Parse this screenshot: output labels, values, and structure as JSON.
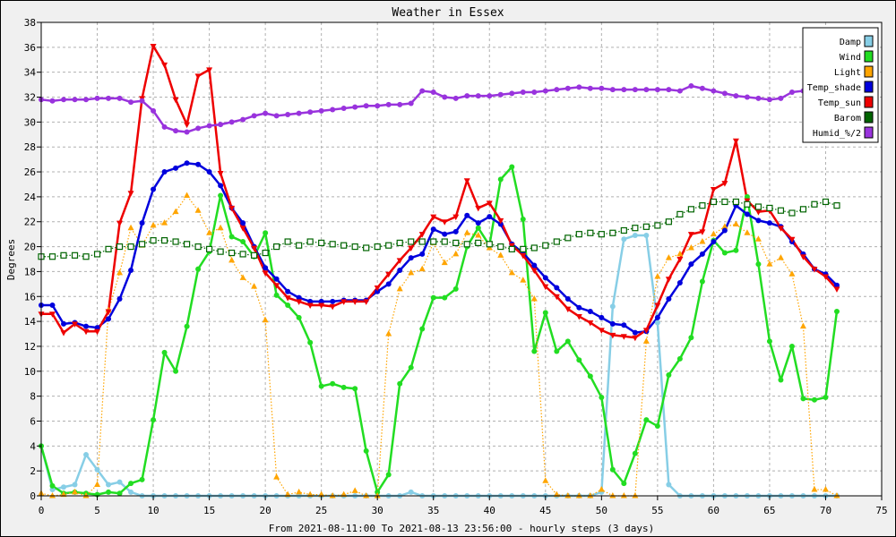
{
  "chart_data": {
    "type": "line",
    "title": "Weather in Essex",
    "xlabel": "From 2021-08-11:00 To 2021-08-13 23:56:00 - hourly steps (3 days)",
    "ylabel": "Degrees",
    "xlim": [
      0,
      75
    ],
    "ylim": [
      0,
      38
    ],
    "x_ticks": [
      0,
      5,
      10,
      15,
      20,
      25,
      30,
      35,
      40,
      45,
      50,
      55,
      60,
      65,
      70,
      75
    ],
    "y_ticks": [
      0,
      2,
      4,
      6,
      8,
      10,
      12,
      14,
      16,
      18,
      20,
      22,
      24,
      26,
      28,
      30,
      32,
      34,
      36,
      38
    ],
    "grid": true,
    "legend_position": "top-right",
    "x": [
      0,
      1,
      2,
      3,
      4,
      5,
      6,
      7,
      8,
      9,
      10,
      11,
      12,
      13,
      14,
      15,
      16,
      17,
      18,
      19,
      20,
      21,
      22,
      23,
      24,
      25,
      26,
      27,
      28,
      29,
      30,
      31,
      32,
      33,
      34,
      35,
      36,
      37,
      38,
      39,
      40,
      41,
      42,
      43,
      44,
      45,
      46,
      47,
      48,
      49,
      50,
      51,
      52,
      53,
      54,
      55,
      56,
      57,
      58,
      59,
      60,
      61,
      62,
      63,
      64,
      65,
      66,
      67,
      68,
      69,
      70,
      71
    ],
    "series": [
      {
        "name": "Damp",
        "color": "#87cee6",
        "style": "solid",
        "marker": "circle",
        "values": [
          4.0,
          0.5,
          0.7,
          0.9,
          3.3,
          2.1,
          0.9,
          1.1,
          0.3,
          0,
          0,
          0,
          0,
          0,
          0,
          0,
          0,
          0,
          0,
          0,
          0,
          0,
          0,
          0,
          0,
          0,
          0,
          0,
          0,
          0,
          0,
          0,
          0,
          0.3,
          0,
          0,
          0,
          0,
          0,
          0,
          0,
          0,
          0,
          0,
          0,
          0,
          0,
          0,
          0,
          0,
          0.3,
          15.2,
          20.6,
          20.9,
          20.9,
          13.9,
          0.9,
          0,
          0,
          0,
          0,
          0,
          0,
          0,
          0,
          0,
          0,
          0,
          0,
          0,
          0,
          0
        ]
      },
      {
        "name": "Wind",
        "color": "#22dd22",
        "style": "solid",
        "marker": "circle",
        "values": [
          4.0,
          0.8,
          0.2,
          0.3,
          0.2,
          0.1,
          0.3,
          0.2,
          1.0,
          1.3,
          6.1,
          11.5,
          10.0,
          13.6,
          18.2,
          19.6,
          24.1,
          20.8,
          20.4,
          19.2,
          21.1,
          16.1,
          15.3,
          14.3,
          12.3,
          8.8,
          9.0,
          8.7,
          8.6,
          3.6,
          0.3,
          1.7,
          9.0,
          10.3,
          13.4,
          15.9,
          15.9,
          16.6,
          20.0,
          21.5,
          20.1,
          25.4,
          26.4,
          22.2,
          11.6,
          14.7,
          11.6,
          12.4,
          10.9,
          9.6,
          7.9,
          2.1,
          1.0,
          3.4,
          6.1,
          5.6,
          9.7,
          11.0,
          12.7,
          17.2,
          20.5,
          19.5,
          19.7,
          24.0,
          18.6,
          12.4,
          9.3,
          12.0,
          7.8,
          7.7,
          7.9,
          14.8
        ]
      },
      {
        "name": "Light",
        "color": "#ffa500",
        "style": "dotted",
        "marker": "triangle-up",
        "values": [
          0.2,
          0,
          0.1,
          0.3,
          0,
          0.9,
          14.9,
          17.9,
          21.5,
          20.1,
          21.7,
          21.9,
          22.8,
          24.1,
          22.9,
          21.1,
          21.5,
          18.9,
          17.5,
          16.8,
          14.1,
          1.5,
          0.1,
          0.3,
          0.1,
          0.1,
          0,
          0.1,
          0.4,
          0,
          0,
          13.0,
          16.6,
          17.9,
          18.2,
          20.3,
          18.7,
          19.4,
          21.1,
          20.9,
          19.9,
          19.3,
          17.9,
          17.3,
          15.8,
          1.2,
          0.1,
          0,
          0,
          0,
          0.5,
          0,
          0,
          0,
          12.4,
          17.6,
          19.1,
          19.4,
          19.9,
          20.4,
          21.0,
          21.6,
          21.8,
          21.1,
          20.6,
          18.6,
          19.1,
          17.8,
          13.6,
          0.5,
          0.5,
          0
        ]
      },
      {
        "name": "Temp_shade",
        "color": "#0000dd",
        "style": "solid",
        "marker": "circle",
        "values": [
          15.3,
          15.3,
          13.8,
          13.9,
          13.6,
          13.5,
          14.2,
          15.8,
          18.1,
          21.9,
          24.6,
          26.0,
          26.3,
          26.7,
          26.6,
          26.0,
          24.9,
          23.1,
          21.9,
          20.0,
          18.3,
          17.4,
          16.4,
          15.9,
          15.6,
          15.6,
          15.6,
          15.7,
          15.7,
          15.7,
          16.4,
          17.0,
          18.1,
          19.1,
          19.4,
          21.4,
          21.0,
          21.2,
          22.5,
          21.9,
          22.4,
          21.8,
          20.2,
          19.5,
          18.5,
          17.5,
          16.7,
          15.8,
          15.1,
          14.8,
          14.3,
          13.8,
          13.7,
          13.1,
          13.2,
          14.3,
          15.8,
          17.1,
          18.6,
          19.4,
          20.4,
          21.3,
          23.3,
          22.6,
          22.1,
          21.9,
          21.6,
          20.4,
          19.4,
          18.2,
          17.8,
          16.9
        ]
      },
      {
        "name": "Temp_sun",
        "color": "#ee0000",
        "style": "solid",
        "marker": "triangle-down",
        "values": [
          14.6,
          14.6,
          13.1,
          13.8,
          13.2,
          13.2,
          14.8,
          21.9,
          24.3,
          31.9,
          36.1,
          34.6,
          31.8,
          29.8,
          33.7,
          34.2,
          25.9,
          23.1,
          21.5,
          19.9,
          17.9,
          16.9,
          15.9,
          15.6,
          15.3,
          15.3,
          15.2,
          15.6,
          15.6,
          15.6,
          16.7,
          17.8,
          18.9,
          19.9,
          21.0,
          22.4,
          22.0,
          22.4,
          25.3,
          23.1,
          23.5,
          22.1,
          20.1,
          19.3,
          18.1,
          16.8,
          16.0,
          15.0,
          14.4,
          13.9,
          13.3,
          12.9,
          12.8,
          12.7,
          13.3,
          15.3,
          17.4,
          19.0,
          21.0,
          21.2,
          24.6,
          25.1,
          28.5,
          23.7,
          22.8,
          22.9,
          21.5,
          20.6,
          19.2,
          18.2,
          17.6,
          16.6
        ]
      },
      {
        "name": "Barom",
        "color": "#006400",
        "style": "dotted",
        "marker": "square",
        "values": [
          19.2,
          19.2,
          19.3,
          19.3,
          19.2,
          19.4,
          19.8,
          20.0,
          20.0,
          20.2,
          20.5,
          20.5,
          20.4,
          20.2,
          20.0,
          19.8,
          19.6,
          19.5,
          19.4,
          19.3,
          19.5,
          20.0,
          20.4,
          20.1,
          20.4,
          20.3,
          20.2,
          20.1,
          20.0,
          19.9,
          20.0,
          20.1,
          20.3,
          20.4,
          20.4,
          20.4,
          20.4,
          20.3,
          20.2,
          20.3,
          20.2,
          20.0,
          19.8,
          19.8,
          19.9,
          20.1,
          20.4,
          20.7,
          21.0,
          21.1,
          21.0,
          21.1,
          21.3,
          21.5,
          21.6,
          21.7,
          22.0,
          22.6,
          23.0,
          23.3,
          23.6,
          23.6,
          23.6,
          23.4,
          23.2,
          23.1,
          22.9,
          22.7,
          23.0,
          23.4,
          23.6,
          23.3
        ]
      },
      {
        "name": "Humid_%/2",
        "color": "#9933dd",
        "style": "solid",
        "marker": "circle",
        "values": [
          31.8,
          31.7,
          31.8,
          31.8,
          31.8,
          31.9,
          31.9,
          31.9,
          31.6,
          31.7,
          30.9,
          29.6,
          29.3,
          29.2,
          29.5,
          29.7,
          29.8,
          30.0,
          30.2,
          30.5,
          30.7,
          30.5,
          30.6,
          30.7,
          30.8,
          30.9,
          31.0,
          31.1,
          31.2,
          31.3,
          31.3,
          31.4,
          31.4,
          31.5,
          32.5,
          32.4,
          32.0,
          31.9,
          32.1,
          32.1,
          32.1,
          32.2,
          32.3,
          32.4,
          32.4,
          32.5,
          32.6,
          32.7,
          32.8,
          32.7,
          32.7,
          32.6,
          32.6,
          32.6,
          32.6,
          32.6,
          32.6,
          32.5,
          32.9,
          32.7,
          32.5,
          32.3,
          32.1,
          32.0,
          31.9,
          31.8,
          31.9,
          32.4,
          32.5,
          32.3,
          32.1,
          32.0
        ]
      }
    ]
  }
}
